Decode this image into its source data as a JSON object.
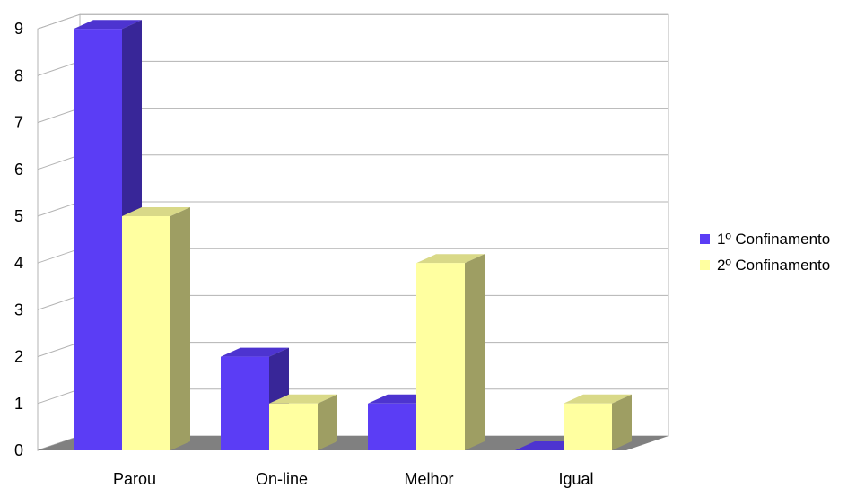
{
  "chart_data": {
    "type": "bar",
    "categories": [
      "Parou",
      "On-line",
      "Melhor",
      "Igual"
    ],
    "series": [
      {
        "name": "1º Confinamento",
        "values": [
          9,
          2,
          1,
          0
        ],
        "color": "#5b3df5"
      },
      {
        "name": "2º Confinamento",
        "values": [
          5,
          1,
          4,
          1
        ],
        "color": "#ffffa0"
      }
    ],
    "yticks": [
      "0",
      "1",
      "2",
      "3",
      "4",
      "5",
      "6",
      "7",
      "8",
      "9"
    ],
    "ylim": [
      0,
      9
    ],
    "grid": true,
    "three_d": true,
    "legend_position": "right"
  }
}
